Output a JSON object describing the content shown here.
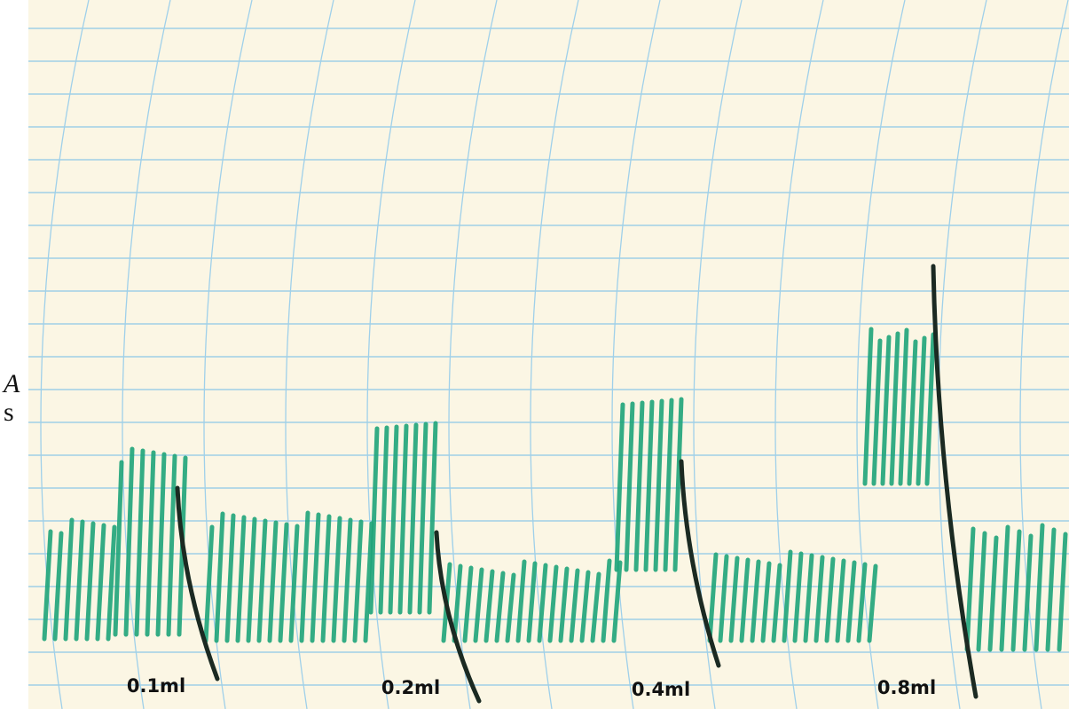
{
  "side_text": [
    "A",
    "s"
  ],
  "labels": [
    "0.1ml",
    "0.2ml",
    "0.4ml",
    "0.8ml"
  ]
}
